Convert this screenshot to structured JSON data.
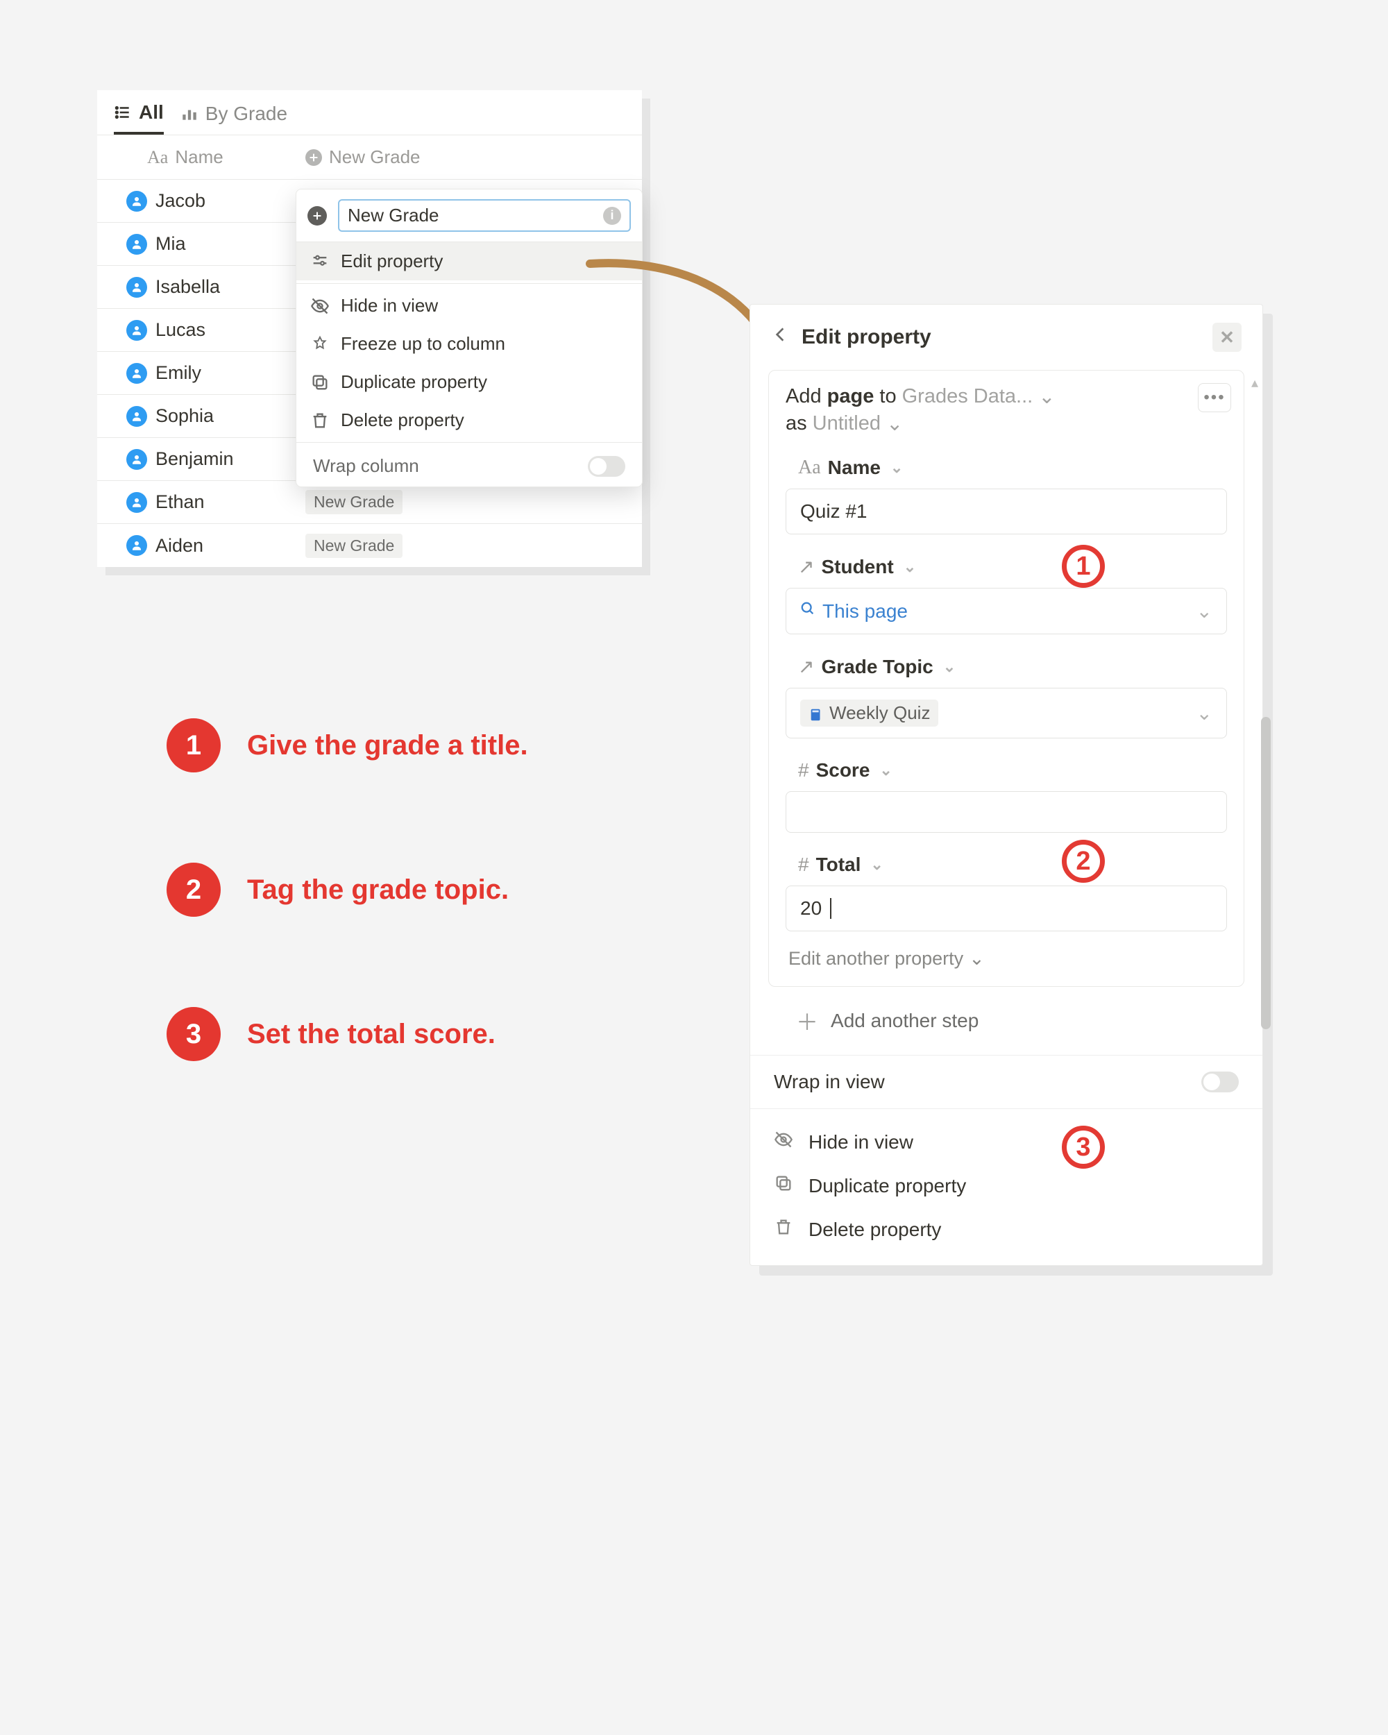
{
  "colors": {
    "accent_red": "#e43730",
    "person_blue": "#2e9cf2",
    "panel_bg": "#ffffff",
    "page_bg": "#f4f4f4",
    "border": "#e9e9e7",
    "muted": "#9b9a97",
    "arrow": "#b9874a"
  },
  "tabs": {
    "all": "All",
    "by_grade": "By Grade"
  },
  "table": {
    "name_header": "Name",
    "grade_header": "New Grade",
    "rows": [
      {
        "name": "Jacob",
        "grade": ""
      },
      {
        "name": "Mia",
        "grade": ""
      },
      {
        "name": "Isabella",
        "grade": ""
      },
      {
        "name": "Lucas",
        "grade": ""
      },
      {
        "name": "Emily",
        "grade": ""
      },
      {
        "name": "Sophia",
        "grade": ""
      },
      {
        "name": "Benjamin",
        "grade": ""
      },
      {
        "name": "Ethan",
        "grade": "New Grade"
      },
      {
        "name": "Aiden",
        "grade": "New Grade"
      }
    ]
  },
  "ctx": {
    "search_value": "New Grade",
    "edit_property": "Edit property",
    "hide": "Hide in view",
    "freeze": "Freeze up to column",
    "duplicate": "Duplicate property",
    "delete": "Delete property",
    "wrap": "Wrap column"
  },
  "side": {
    "title": "Edit property",
    "add_page_to": "Add page to",
    "target_db": "Grades Data...",
    "as_label": "as",
    "as_value": "Untitled",
    "fields": {
      "name_label": "Name",
      "name_value": "Quiz #1",
      "student_label": "Student",
      "student_value": "This page",
      "topic_label": "Grade Topic",
      "topic_value": "Weekly Quiz",
      "score_label": "Score",
      "score_value": "",
      "total_label": "Total",
      "total_value": "20"
    },
    "edit_another": "Edit another property",
    "add_step": "Add another step",
    "wrap_in_view": "Wrap in view",
    "hide": "Hide in view",
    "duplicate": "Duplicate property",
    "delete": "Delete property"
  },
  "callouts": {
    "s1": "Give the grade a title.",
    "s2": "Tag the grade topic.",
    "s3": "Set the total score."
  }
}
